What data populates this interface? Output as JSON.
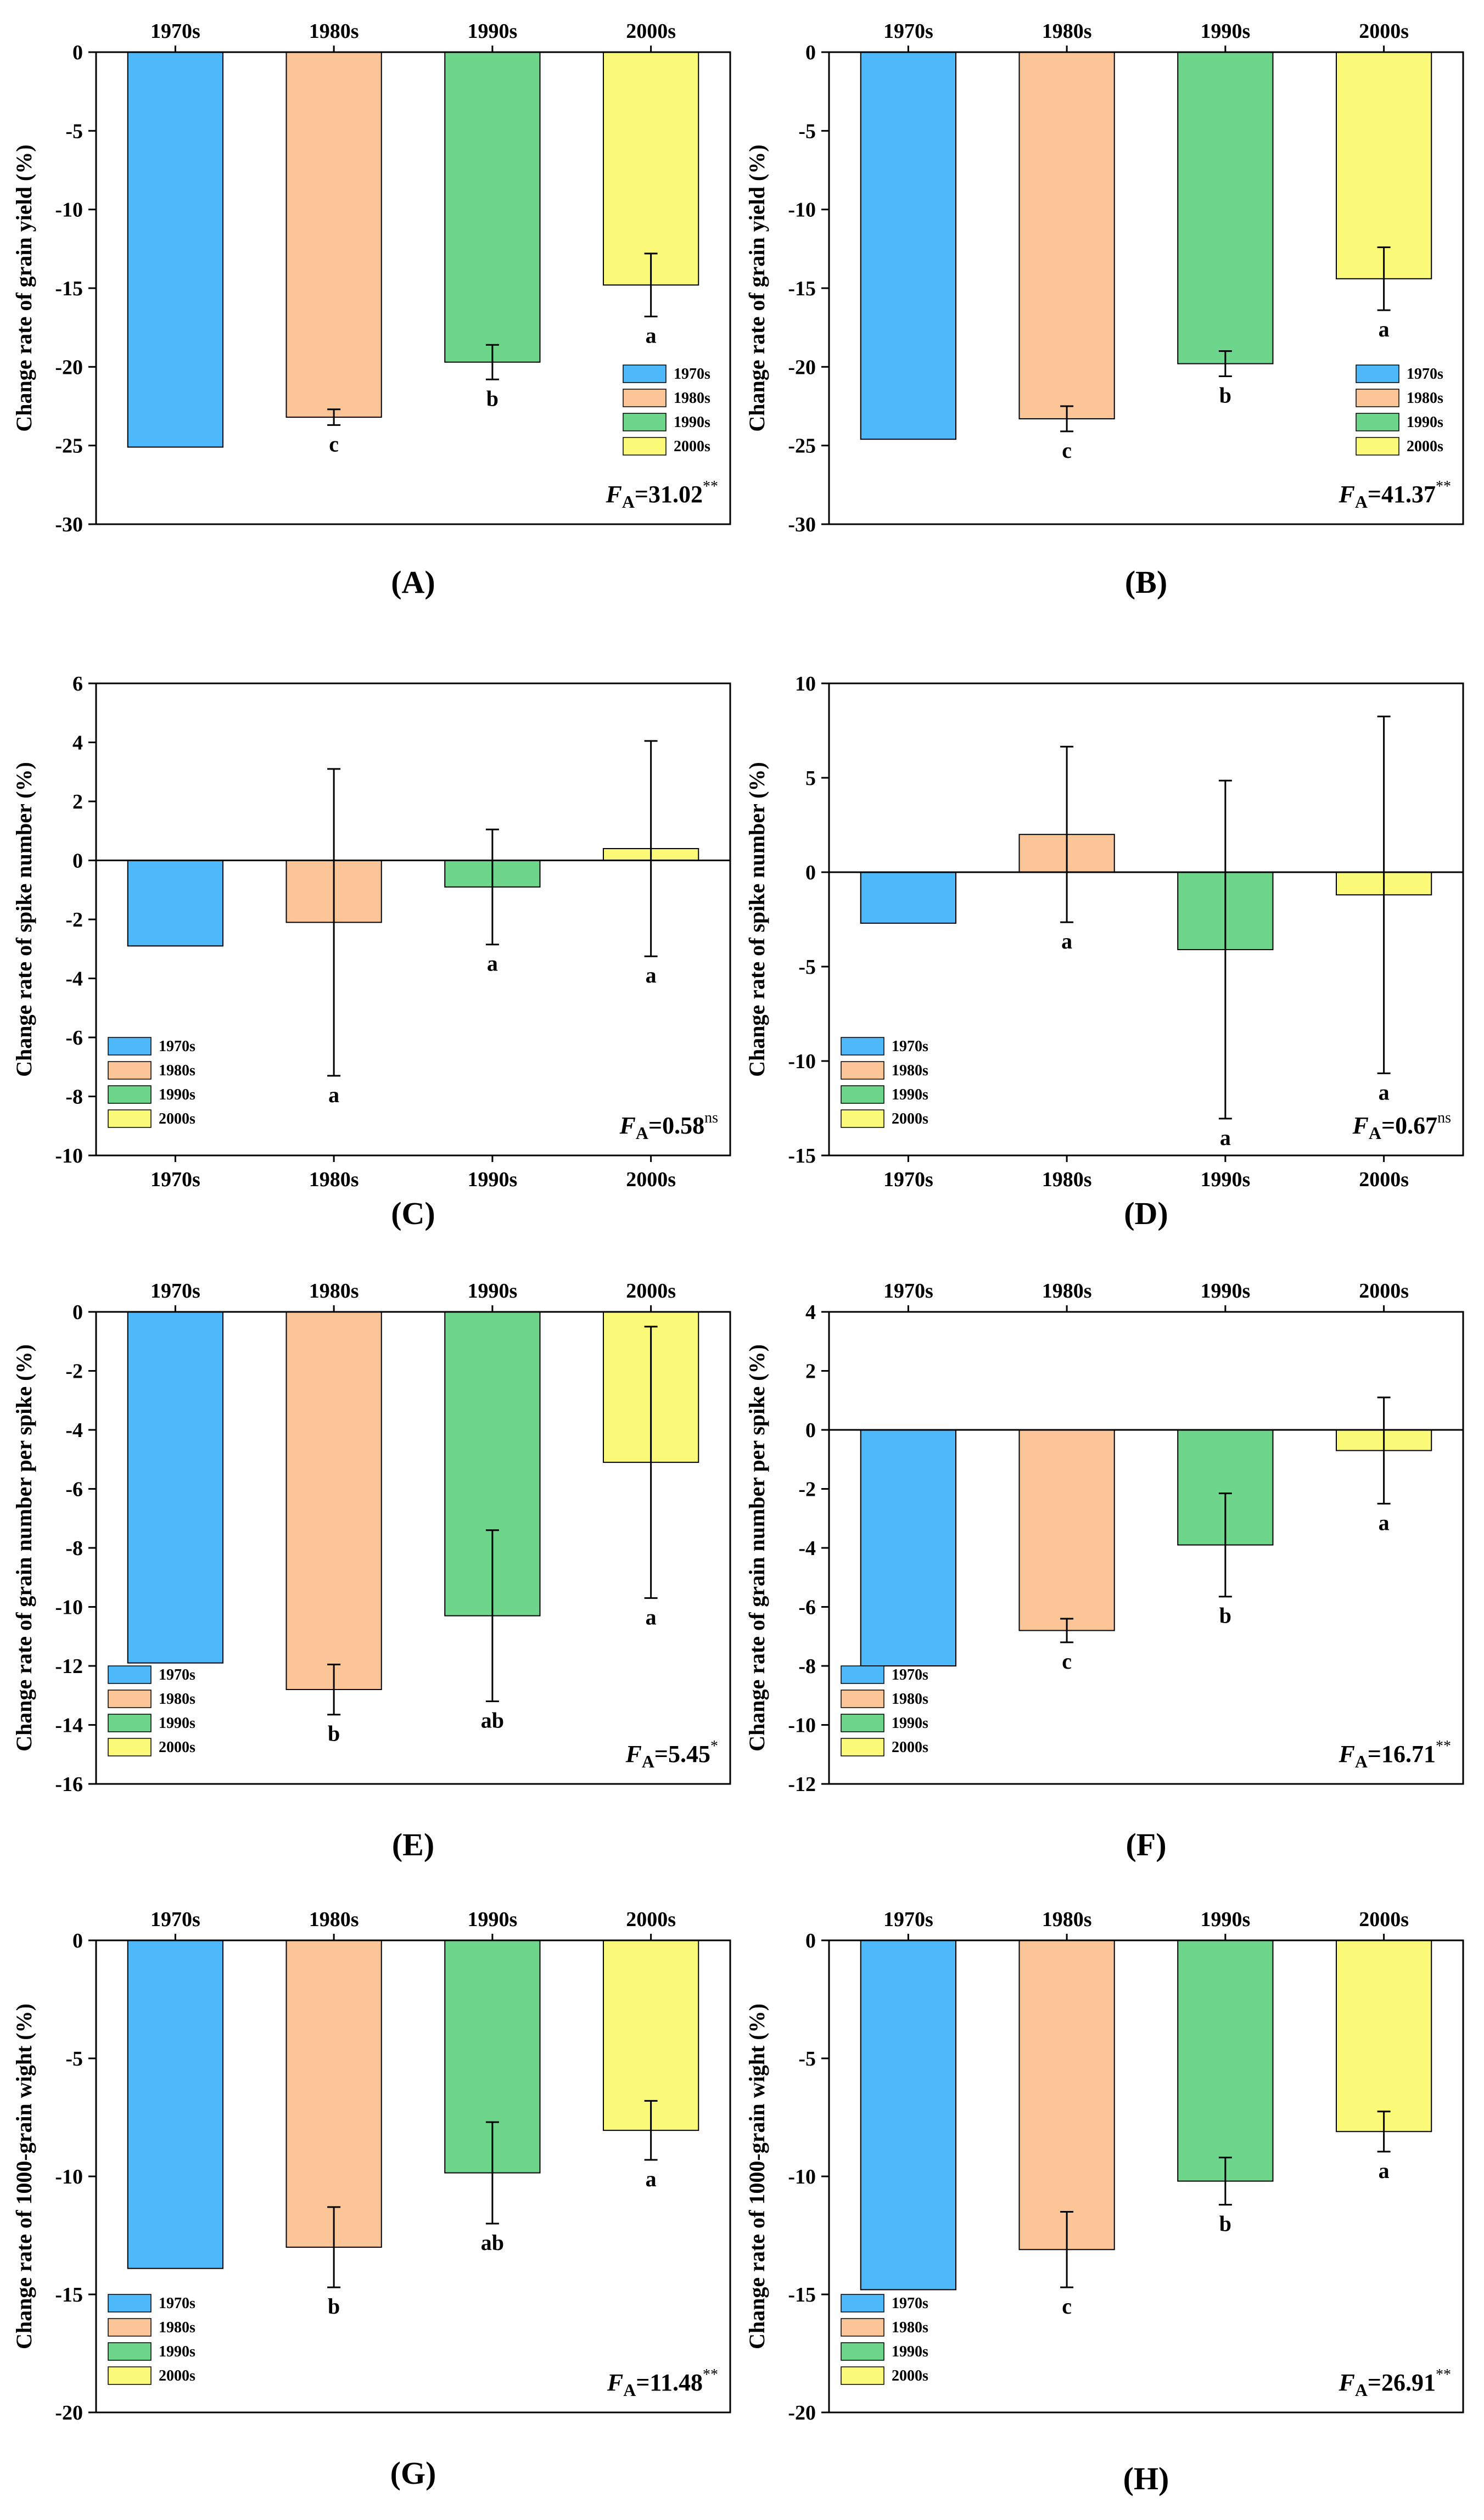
{
  "figure": {
    "legend_title": "",
    "colors": {
      "1970s": "#4DB8FA",
      "1980s": "#FBC598",
      "1990s": "#6DD68A",
      "2000s": "#FAFA78",
      "stroke": "#000000"
    }
  },
  "chart_data": [
    {
      "panel": "(A)",
      "type": "bar",
      "ylabel": "Change rate of grain yield (%)",
      "categories": [
        "1970s",
        "1980s",
        "1990s",
        "2000s"
      ],
      "values": [
        -25.1,
        -23.2,
        -19.7,
        -14.8
      ],
      "errors": [
        null,
        0.5,
        1.1,
        2.0
      ],
      "letters": [
        "",
        "c",
        "b",
        "a"
      ],
      "ylim": [
        -30,
        0
      ],
      "yticks": [
        0,
        -5,
        -10,
        -15,
        -20,
        -25,
        -30
      ],
      "xaxis_position": "top",
      "legend_position": "bottom-right",
      "f_label": "F",
      "f_sub": "A",
      "f_value": "=31.02",
      "f_sig": "**"
    },
    {
      "panel": "(B)",
      "type": "bar",
      "ylabel": "Change rate of grain yield (%)",
      "categories": [
        "1970s",
        "1980s",
        "1990s",
        "2000s"
      ],
      "values": [
        -24.6,
        -23.3,
        -19.8,
        -14.4
      ],
      "errors": [
        null,
        0.8,
        0.8,
        2.0
      ],
      "letters": [
        "",
        "c",
        "b",
        "a"
      ],
      "ylim": [
        -30,
        0
      ],
      "yticks": [
        0,
        -5,
        -10,
        -15,
        -20,
        -25,
        -30
      ],
      "xaxis_position": "top",
      "legend_position": "bottom-right",
      "f_label": "F",
      "f_sub": "A",
      "f_value": "=41.37",
      "f_sig": "**"
    },
    {
      "panel": "(C)",
      "type": "bar",
      "ylabel": "Change rate of spike number (%)",
      "categories": [
        "1970s",
        "1980s",
        "1990s",
        "2000s"
      ],
      "values": [
        -2.9,
        -2.1,
        -0.9,
        0.4
      ],
      "errors": [
        null,
        5.2,
        1.95,
        3.65
      ],
      "letters": [
        "",
        "a",
        "a",
        "a"
      ],
      "ylim": [
        -10,
        6
      ],
      "yticks": [
        6,
        4,
        2,
        0,
        -2,
        -4,
        -6,
        -8,
        -10
      ],
      "xaxis_position": "bottom",
      "legend_position": "bottom-left",
      "f_label": "F",
      "f_sub": "A",
      "f_value": "=0.58",
      "f_sig": "ns"
    },
    {
      "panel": "(D)",
      "type": "bar",
      "ylabel": "Change rate of spike number (%)",
      "categories": [
        "1970s",
        "1980s",
        "1990s",
        "2000s"
      ],
      "values": [
        -2.7,
        2.0,
        -4.1,
        -1.2
      ],
      "errors": [
        null,
        4.65,
        8.95,
        9.45
      ],
      "letters": [
        "",
        "a",
        "a",
        "a"
      ],
      "ylim": [
        -15,
        10
      ],
      "yticks": [
        10,
        5,
        0,
        -5,
        -10,
        -15
      ],
      "xaxis_position": "bottom",
      "legend_position": "bottom-left",
      "f_label": "F",
      "f_sub": "A",
      "f_value": "=0.67",
      "f_sig": "ns"
    },
    {
      "panel": "(E)",
      "type": "bar",
      "ylabel": "Change rate of grain number per spike (%)",
      "categories": [
        "1970s",
        "1980s",
        "1990s",
        "2000s"
      ],
      "values": [
        -11.9,
        -12.8,
        -10.3,
        -5.1
      ],
      "errors": [
        null,
        0.85,
        2.9,
        4.6
      ],
      "letters": [
        "",
        "b",
        "ab",
        "a"
      ],
      "ylim": [
        -16,
        0
      ],
      "yticks": [
        0,
        -2,
        -4,
        -6,
        -8,
        -10,
        -12,
        -14,
        -16
      ],
      "xaxis_position": "top",
      "legend_position": "bottom-left",
      "f_label": "F",
      "f_sub": "A",
      "f_value": "=5.45",
      "f_sig": "*"
    },
    {
      "panel": "(F)",
      "type": "bar",
      "ylabel": "Change rate of grain number per spike (%)",
      "categories": [
        "1970s",
        "1980s",
        "1990s",
        "2000s"
      ],
      "values": [
        -8.0,
        -6.8,
        -3.9,
        -0.7
      ],
      "errors": [
        null,
        0.4,
        1.75,
        1.8
      ],
      "letters": [
        "",
        "c",
        "b",
        "a"
      ],
      "ylim": [
        -12,
        4
      ],
      "yticks": [
        4,
        2,
        0,
        -2,
        -4,
        -6,
        -8,
        -10,
        -12
      ],
      "xaxis_position": "top",
      "legend_position": "bottom-left",
      "f_label": "F",
      "f_sub": "A",
      "f_value": "=16.71",
      "f_sig": "**"
    },
    {
      "panel": "(G)",
      "type": "bar",
      "ylabel": "Change rate of 1000-grain wight (%)",
      "categories": [
        "1970s",
        "1980s",
        "1990s",
        "2000s"
      ],
      "values": [
        -13.9,
        -13.0,
        -9.85,
        -8.05
      ],
      "errors": [
        null,
        1.7,
        2.15,
        1.25
      ],
      "letters": [
        "",
        "b",
        "ab",
        "a"
      ],
      "ylim": [
        -20,
        0
      ],
      "yticks": [
        0,
        -5,
        -10,
        -15,
        -20
      ],
      "xaxis_position": "top",
      "legend_position": "bottom-left",
      "f_label": "F",
      "f_sub": "A",
      "f_value": "=11.48",
      "f_sig": "**"
    },
    {
      "panel": "(H)",
      "type": "bar",
      "ylabel": "Change rate of 1000-grain wight (%)",
      "categories": [
        "1970s",
        "1980s",
        "1990s",
        "2000s"
      ],
      "values": [
        -14.8,
        -13.1,
        -10.2,
        -8.1
      ],
      "errors": [
        null,
        1.6,
        1.0,
        0.85
      ],
      "letters": [
        "",
        "c",
        "b",
        "a"
      ],
      "ylim": [
        -20,
        0
      ],
      "yticks": [
        0,
        -5,
        -10,
        -15,
        -20
      ],
      "xaxis_position": "top",
      "legend_position": "bottom-left",
      "f_label": "F",
      "f_sub": "A",
      "f_value": "=26.91",
      "f_sig": "**"
    }
  ]
}
